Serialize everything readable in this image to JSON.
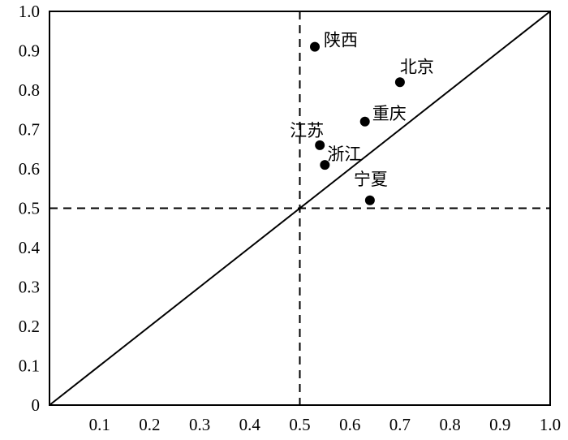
{
  "chart_data": {
    "type": "scatter",
    "title": "",
    "xlabel": "",
    "ylabel": "",
    "xlim": [
      0,
      1.0
    ],
    "ylim": [
      0,
      1.0
    ],
    "x_ticks": [
      "0.1",
      "0.2",
      "0.3",
      "0.4",
      "0.5",
      "0.6",
      "0.7",
      "0.8",
      "0.9",
      "1.0"
    ],
    "y_ticks": [
      "0",
      "0.1",
      "0.2",
      "0.3",
      "0.4",
      "0.5",
      "0.6",
      "0.7",
      "0.8",
      "0.9",
      "1.0"
    ],
    "points": [
      {
        "label": "陕西",
        "x": 0.53,
        "y": 0.91
      },
      {
        "label": "北京",
        "x": 0.7,
        "y": 0.82
      },
      {
        "label": "重庆",
        "x": 0.63,
        "y": 0.72
      },
      {
        "label": "江苏",
        "x": 0.54,
        "y": 0.66
      },
      {
        "label": "浙江",
        "x": 0.55,
        "y": 0.61
      },
      {
        "label": "宁夏",
        "x": 0.64,
        "y": 0.52
      }
    ],
    "reference_lines": {
      "diagonal": {
        "from": [
          0,
          0
        ],
        "to": [
          1.0,
          1.0
        ],
        "style": "solid"
      },
      "vertical": {
        "x": 0.5,
        "style": "dashed"
      },
      "horizontal": {
        "y": 0.5,
        "style": "dashed"
      }
    },
    "grid": false,
    "legend": "none",
    "colors": {
      "axis": "#000000",
      "marker": "#000000"
    }
  }
}
